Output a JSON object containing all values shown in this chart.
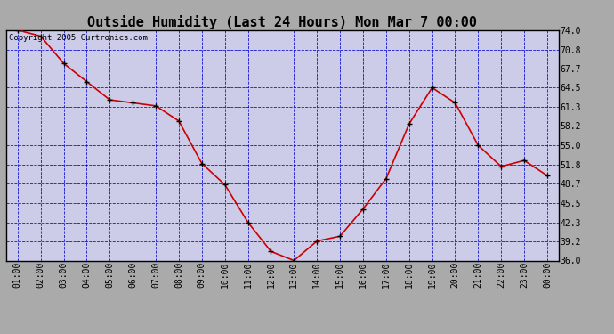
{
  "title": "Outside Humidity (Last 24 Hours) Mon Mar 7 00:00",
  "copyright": "Copyright 2005 Curtronics.com",
  "x_labels": [
    "01:00",
    "02:00",
    "03:00",
    "04:00",
    "05:00",
    "06:00",
    "07:00",
    "08:00",
    "09:00",
    "10:00",
    "11:00",
    "12:00",
    "13:00",
    "14:00",
    "15:00",
    "16:00",
    "17:00",
    "18:00",
    "19:00",
    "20:00",
    "21:00",
    "22:00",
    "23:00",
    "00:00"
  ],
  "x_values": [
    1,
    2,
    3,
    4,
    5,
    6,
    7,
    8,
    9,
    10,
    11,
    12,
    13,
    14,
    15,
    16,
    17,
    18,
    19,
    20,
    21,
    22,
    23,
    24
  ],
  "y_values": [
    74.0,
    73.0,
    68.5,
    65.5,
    62.5,
    62.0,
    61.5,
    59.0,
    52.0,
    48.5,
    42.3,
    37.5,
    36.0,
    39.2,
    40.0,
    44.5,
    49.5,
    58.5,
    64.5,
    62.0,
    55.0,
    51.5,
    52.5,
    50.0
  ],
  "ylim": [
    36.0,
    74.0
  ],
  "yticks": [
    36.0,
    39.2,
    42.3,
    45.5,
    48.7,
    51.8,
    55.0,
    58.2,
    61.3,
    64.5,
    67.7,
    70.8,
    74.0
  ],
  "line_color": "#cc0000",
  "marker_color": "#000000",
  "grid_color": "#0000cc",
  "plot_bg_color": "#cccce8",
  "fig_bg_color": "#aaaaaa",
  "title_fontsize": 11,
  "copyright_fontsize": 6.5,
  "tick_fontsize": 7,
  "ytick_fontsize": 7
}
